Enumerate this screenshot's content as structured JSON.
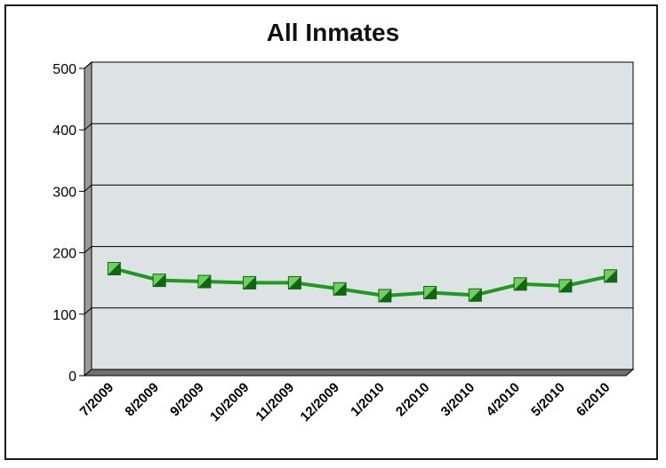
{
  "chart_data": {
    "type": "line",
    "title": "All Inmates",
    "xlabel": "",
    "ylabel": "",
    "categories": [
      "7/2009",
      "8/2009",
      "9/2009",
      "10/2009",
      "11/2009",
      "12/2009",
      "1/2010",
      "2/2010",
      "3/2010",
      "4/2010",
      "5/2010",
      "6/2010"
    ],
    "series": [
      {
        "values": [
          164,
          145,
          143,
          141,
          141,
          131,
          120,
          125,
          121,
          139,
          136,
          152
        ]
      }
    ],
    "ylim": [
      0,
      500
    ],
    "yticks": [
      0,
      100,
      200,
      300,
      400,
      500
    ],
    "grid": true,
    "colors": {
      "line": "#1f9a1f",
      "marker": "#6fcf5f",
      "marker_dark": "#116611",
      "plot_bg": "#dde3e5",
      "wall": "#9a9a9a"
    }
  }
}
